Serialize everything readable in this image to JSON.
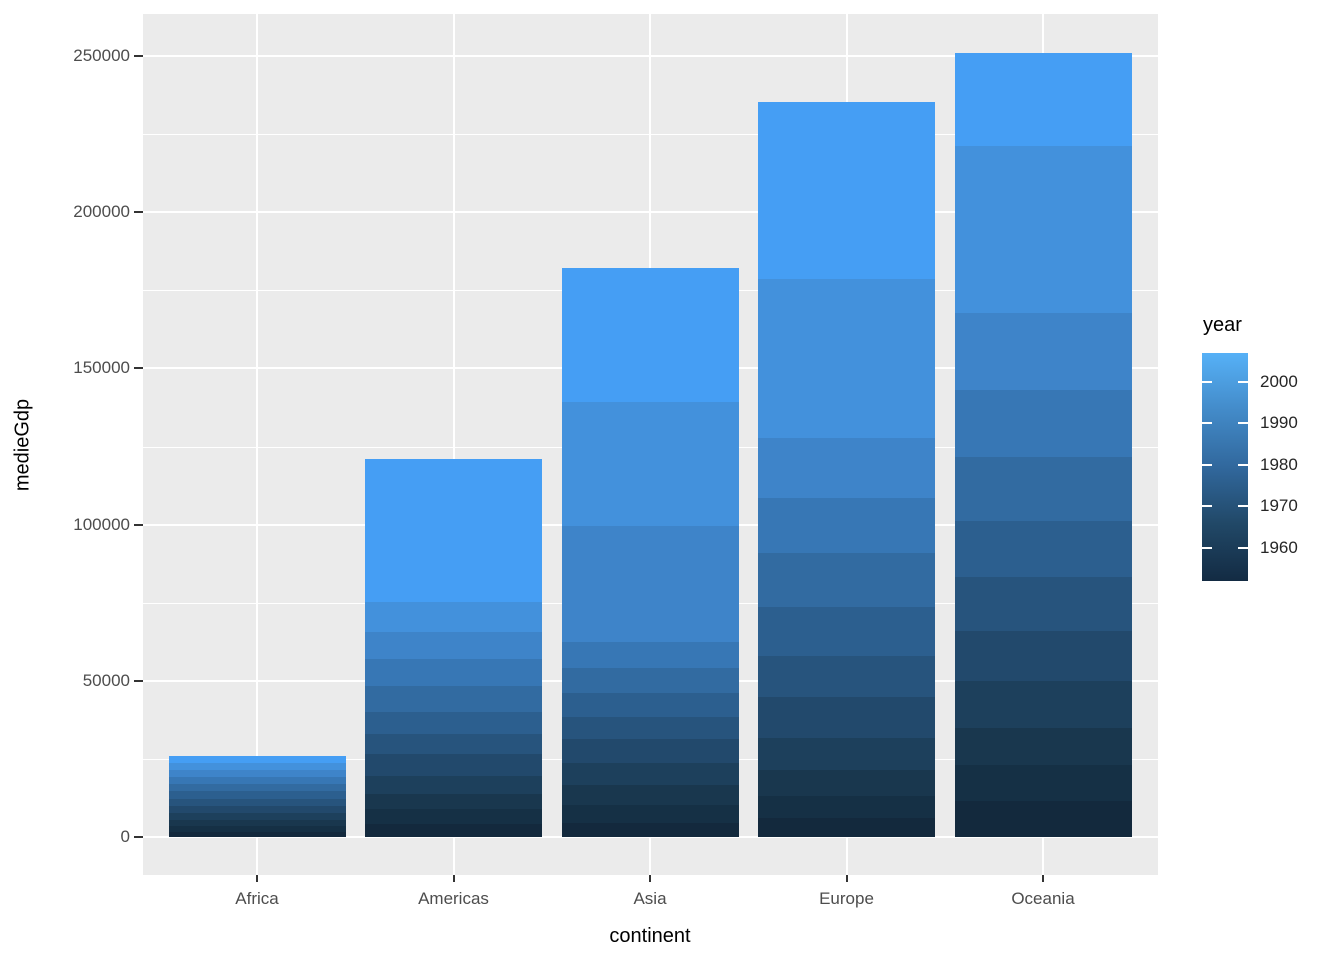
{
  "chart_data": {
    "type": "bar",
    "stacked": true,
    "xlabel": "continent",
    "ylabel": "medieGdp",
    "categories": [
      "Africa",
      "Americas",
      "Asia",
      "Europe",
      "Oceania"
    ],
    "series": [
      {
        "name": "2007",
        "values": [
          2250,
          45850,
          42950,
          56750,
          29800
        ]
      },
      {
        "name": "2002",
        "values": [
          2250,
          9600,
          39400,
          51000,
          53550
        ]
      },
      {
        "name": "1997",
        "values": [
          2250,
          8650,
          37200,
          19250,
          24700
        ]
      },
      {
        "name": "1992",
        "values": [
          2250,
          8650,
          8350,
          17300,
          21500
        ]
      },
      {
        "name": "1987",
        "values": [
          2400,
          8350,
          8000,
          17300,
          20500
        ]
      },
      {
        "name": "1982",
        "values": [
          2400,
          7050,
          7700,
          15700,
          17650
        ]
      },
      {
        "name": "1977",
        "values": [
          2250,
          6400,
          7050,
          13150,
          17300
        ]
      },
      {
        "name": "1972",
        "values": [
          2250,
          7050,
          7700,
          13150,
          16050
        ]
      },
      {
        "name": "1967",
        "values": [
          2250,
          5750,
          7050,
          10250,
          15050
        ]
      },
      {
        "name": "1962",
        "values": [
          2100,
          4800,
          6400,
          8350,
          11850
        ]
      },
      {
        "name": "1957",
        "values": [
          1800,
          4800,
          5750,
          7050,
          11550
        ]
      },
      {
        "name": "1952",
        "values": [
          1550,
          4150,
          4500,
          6100,
          11550
        ]
      }
    ],
    "totals": [
      26000,
      121100,
      182050,
      235350,
      251050
    ],
    "ylim": [
      0,
      263550
    ],
    "y_ticks": [
      {
        "label": "0",
        "value": 0
      },
      {
        "label": "50000",
        "value": 50000
      },
      {
        "label": "100000",
        "value": 100000
      },
      {
        "label": "150000",
        "value": 150000
      },
      {
        "label": "200000",
        "value": 200000
      },
      {
        "label": "250000",
        "value": 250000
      }
    ],
    "grid": "major-and-minor",
    "legend_position": "right",
    "series_colors": {
      "2007": "#459EF4",
      "2002": "#4391DC",
      "1997": "#3E84C9",
      "1992": "#3777B5",
      "1987": "#326BA1",
      "1982": "#2C5F8F",
      "1977": "#27547D",
      "1972": "#22496C",
      "1967": "#1D405C",
      "1962": "#19374E",
      "1957": "#153045",
      "1952": "#13293D"
    }
  },
  "legend": {
    "title": "year",
    "ticks": [
      {
        "label": "2000",
        "value": 2000
      },
      {
        "label": "1990",
        "value": 1990
      },
      {
        "label": "1980",
        "value": 1980
      },
      {
        "label": "1970",
        "value": 1970
      },
      {
        "label": "1960",
        "value": 1960
      }
    ],
    "domain": [
      1952,
      2007
    ],
    "gradient_low": "#132B43",
    "gradient_mid": "#31689D",
    "gradient_high": "#56B1F7"
  },
  "style_colors": {
    "panel_background": "#EBEBEB",
    "gridline": "#FFFFFF",
    "tick_text": "#4D4D4D",
    "axis_tick_mark": "#333333",
    "title_text": "#000000"
  }
}
